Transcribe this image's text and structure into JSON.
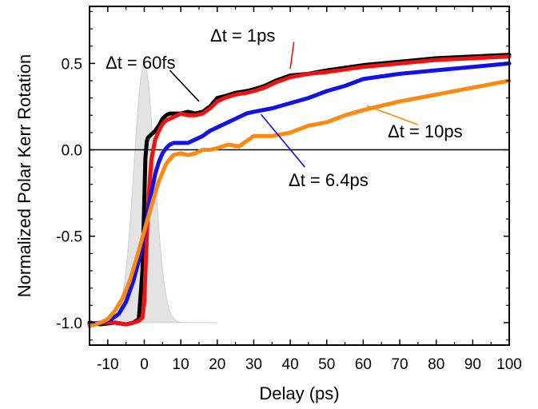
{
  "chart_data": {
    "type": "line",
    "title": "",
    "xlabel": "Delay (ps)",
    "ylabel": "Normalized Polar Kerr Rotation",
    "xlim": [
      -15,
      100
    ],
    "ylim": [
      -1.13,
      0.83
    ],
    "x_ticks": [
      -10,
      0,
      10,
      20,
      30,
      40,
      50,
      60,
      70,
      80,
      90,
      100
    ],
    "x_tick_labels": [
      "-10",
      "0",
      "10",
      "20",
      "30",
      "40",
      "50",
      "60",
      "70",
      "80",
      "90",
      "100"
    ],
    "y_ticks": [
      -1.0,
      -0.5,
      0.0,
      0.5
    ],
    "y_tick_labels": [
      "-1.0",
      "-0.5",
      "0.0",
      "0.5"
    ],
    "grid": false,
    "zero_line": true,
    "pump_pulse": {
      "center": 0,
      "amplitude": 1.5,
      "baseline": -1.0,
      "sigma": 2.8,
      "x_range": [
        -13,
        20
      ],
      "color": "#e3e3e3"
    },
    "series": [
      {
        "name": "Δt = 60fs",
        "color": "#000000",
        "x": [
          -15,
          -12,
          -8,
          -5,
          -3,
          -1.5,
          -0.5,
          0,
          0.3,
          0.7,
          1,
          2,
          3,
          4,
          5,
          6,
          7,
          8,
          10,
          12,
          14,
          16,
          18,
          20,
          22,
          25,
          28,
          30,
          33,
          36,
          40,
          45,
          50,
          60,
          70,
          80,
          90,
          100
        ],
        "y": [
          -1.0,
          -1.01,
          -1.0,
          -1.01,
          -1.0,
          -0.98,
          -0.7,
          -0.3,
          -0.05,
          0.05,
          0.07,
          0.09,
          0.11,
          0.14,
          0.18,
          0.2,
          0.21,
          0.21,
          0.21,
          0.22,
          0.21,
          0.22,
          0.25,
          0.3,
          0.31,
          0.33,
          0.34,
          0.35,
          0.37,
          0.4,
          0.43,
          0.44,
          0.46,
          0.49,
          0.51,
          0.53,
          0.54,
          0.55
        ]
      },
      {
        "name": "Δt = 1ps",
        "color": "#ee1111",
        "x": [
          -15,
          -12,
          -8,
          -5,
          -3,
          -1.5,
          -0.5,
          0,
          0.5,
          1,
          1.5,
          2,
          3,
          4,
          5,
          6,
          7,
          8,
          10,
          12,
          14,
          16,
          18,
          20,
          22,
          25,
          28,
          30,
          33,
          36,
          40,
          45,
          50,
          60,
          70,
          80,
          90,
          100
        ],
        "y": [
          -1.01,
          -1.0,
          -1.0,
          -1.01,
          -1.0,
          -0.99,
          -0.97,
          -0.88,
          -0.6,
          -0.35,
          -0.18,
          -0.05,
          0.06,
          0.11,
          0.15,
          0.17,
          0.18,
          0.19,
          0.21,
          0.2,
          0.2,
          0.21,
          0.24,
          0.28,
          0.3,
          0.32,
          0.33,
          0.34,
          0.36,
          0.39,
          0.42,
          0.44,
          0.45,
          0.48,
          0.5,
          0.52,
          0.53,
          0.54
        ]
      },
      {
        "name": "Δt = 6.4ps",
        "color": "#1111ee",
        "x": [
          -15,
          -12,
          -9,
          -7,
          -5,
          -3,
          -1,
          0,
          1,
          2,
          3,
          4,
          5,
          6,
          7,
          8,
          10,
          12,
          14,
          16,
          18,
          20,
          22,
          25,
          28,
          30,
          35,
          40,
          45,
          50,
          55,
          60,
          70,
          80,
          90,
          100
        ],
        "y": [
          -1.01,
          -1.0,
          -0.98,
          -0.95,
          -0.88,
          -0.76,
          -0.6,
          -0.48,
          -0.36,
          -0.24,
          -0.14,
          -0.07,
          -0.02,
          0.01,
          0.03,
          0.04,
          0.04,
          0.04,
          0.06,
          0.08,
          0.11,
          0.13,
          0.15,
          0.18,
          0.21,
          0.22,
          0.24,
          0.27,
          0.3,
          0.34,
          0.37,
          0.41,
          0.44,
          0.46,
          0.48,
          0.5
        ]
      },
      {
        "name": "Δt = 10ps",
        "color": "#ff8811",
        "x": [
          -15,
          -12,
          -10,
          -8,
          -6,
          -4,
          -2,
          0,
          2,
          4,
          6,
          8,
          10,
          12,
          14,
          16,
          18,
          20,
          23,
          26,
          30,
          35,
          40,
          45,
          50,
          55,
          60,
          70,
          80,
          90,
          100
        ],
        "y": [
          -1.02,
          -1.0,
          -0.98,
          -0.93,
          -0.86,
          -0.76,
          -0.62,
          -0.47,
          -0.32,
          -0.18,
          -0.08,
          -0.03,
          -0.02,
          -0.03,
          -0.02,
          0.0,
          0.0,
          0.01,
          0.03,
          0.02,
          0.08,
          0.08,
          0.1,
          0.14,
          0.16,
          0.2,
          0.23,
          0.28,
          0.32,
          0.36,
          0.4
        ]
      }
    ],
    "annotations": [
      {
        "text": "Δt = 60fs",
        "series": "Δt = 60fs",
        "point": [
          15,
          0.28
        ],
        "line_from": [
          7,
          0.46
        ]
      },
      {
        "text": "Δt = 1ps",
        "series": "Δt = 1ps",
        "point": [
          40,
          0.47
        ],
        "line_from": [
          41,
          0.625
        ]
      },
      {
        "text": "Δt = 6.4ps",
        "series": "Δt = 6.4ps",
        "point": [
          32,
          0.205
        ],
        "line_from": [
          44,
          -0.1
        ]
      },
      {
        "text": "Δt = 10ps",
        "series": "Δt = 10ps",
        "point": [
          61,
          0.255
        ],
        "line_from": [
          75,
          0.145
        ]
      }
    ]
  }
}
